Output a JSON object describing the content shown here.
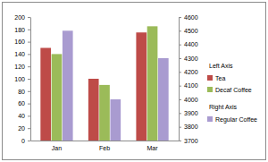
{
  "chart_data": {
    "type": "bar",
    "categories": [
      "Jan",
      "Feb",
      "Mar"
    ],
    "series": [
      {
        "name": "Tea",
        "color": "#be4b48",
        "values": [
          150,
          100,
          175
        ]
      },
      {
        "name": "Decaf Coffee",
        "color": "#9bbb59",
        "values": [
          140,
          90,
          185
        ]
      },
      {
        "name": "Regular Coffee",
        "color": "#a99bd0",
        "values": [
          4500,
          4000,
          4300
        ],
        "axis": "y2"
      }
    ],
    "ylabel": "Left Axis",
    "y2label": "Right Axis",
    "ylim": [
      0,
      200
    ],
    "yticks": [
      0,
      20,
      40,
      60,
      80,
      100,
      120,
      140,
      160,
      180,
      200
    ],
    "y2lim": [
      3700,
      4600
    ],
    "y2ticks": [
      3700,
      3800,
      3900,
      4000,
      4100,
      4200,
      4300,
      4400,
      4500,
      4600
    ],
    "grid": false,
    "legend": "right"
  }
}
